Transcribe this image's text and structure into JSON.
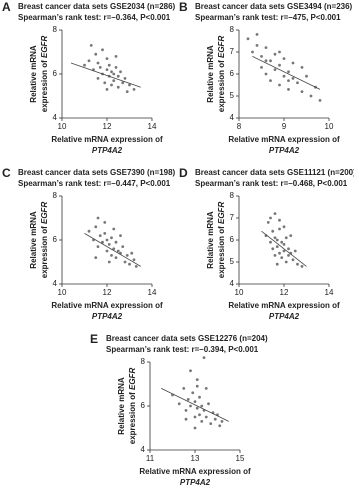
{
  "chart_data": [
    {
      "type": "scatter",
      "label": "A",
      "title": "Breast cancer data sets GSE2034 (n=286)",
      "subtitle": "Spearman’s rank test: r=–0.364, P<0.001",
      "ylabel": [
        "Relative mRNA",
        "expression of ",
        "EGFR"
      ],
      "xlabel": [
        "Relative mRNA expression of",
        "PTP4A2"
      ],
      "xlim": [
        10,
        14
      ],
      "xticks": [
        10,
        12,
        14
      ],
      "ylim": [
        4,
        8
      ],
      "yticks": [
        4,
        6,
        8
      ],
      "color": "#777777",
      "x": [
        11.2,
        11.4,
        11.5,
        11.6,
        11.7,
        11.8,
        11.8,
        11.9,
        12.0,
        12.0,
        12.1,
        12.1,
        12.2,
        12.2,
        12.3,
        12.3,
        12.4,
        12.5,
        12.5,
        12.6,
        12.7,
        12.8,
        12.9,
        13.0,
        13.2,
        11.0,
        11.3,
        11.6,
        12.0,
        12.4
      ],
      "y": [
        6.6,
        6.2,
        6.9,
        5.8,
        6.3,
        6.0,
        7.1,
        5.6,
        6.2,
        6.7,
        5.9,
        6.4,
        5.5,
        6.1,
        6.0,
        5.7,
        6.3,
        5.4,
        5.9,
        6.1,
        5.6,
        5.8,
        5.2,
        5.5,
        5.3,
        6.4,
        7.3,
        6.5,
        5.3,
        6.8
      ],
      "trend": {
        "x": [
          10.4,
          13.5
        ],
        "y": [
          6.5,
          5.4
        ]
      }
    },
    {
      "type": "scatter",
      "label": "B",
      "title": "Breast cancer data sets GSE3494 (n=236)",
      "subtitle": "Spearman’s rank test: r=–475, P<0.001",
      "ylabel": [
        "Relative mRNA",
        "expression of ",
        "EGFR"
      ],
      "xlabel": [
        "Relative mRNA expression of",
        "PTP4A2"
      ],
      "xlim": [
        8,
        10
      ],
      "xticks": [
        8,
        9,
        10
      ],
      "ylim": [
        4,
        8
      ],
      "yticks": [
        4,
        5,
        6,
        7,
        8
      ],
      "color": "#777777",
      "x": [
        8.2,
        8.3,
        8.4,
        8.5,
        8.5,
        8.6,
        8.6,
        8.7,
        8.7,
        8.8,
        8.8,
        8.9,
        8.9,
        9.0,
        9.0,
        9.1,
        9.1,
        9.2,
        9.2,
        9.3,
        9.4,
        9.5,
        9.6,
        9.7,
        9.8,
        8.4,
        8.6,
        8.9,
        9.1,
        9.4
      ],
      "y": [
        7.6,
        7.0,
        7.3,
        6.8,
        6.3,
        7.2,
        6.0,
        6.6,
        5.7,
        6.9,
        6.2,
        6.4,
        5.5,
        6.7,
        5.9,
        6.1,
        5.3,
        5.8,
        6.5,
        5.6,
        5.2,
        5.9,
        5.0,
        5.4,
        4.8,
        7.8,
        6.6,
        7.0,
        5.7,
        6.3
      ],
      "trend": {
        "x": [
          8.3,
          9.8
        ],
        "y": [
          6.8,
          5.3
        ]
      }
    },
    {
      "type": "scatter",
      "label": "C",
      "title": "Breast cancer data sets GSE7390 (n=198)",
      "subtitle": "Spearman’s rank test: r=–0.447, P<0.001",
      "ylabel": [
        "Relative mRNA",
        "expression of ",
        "EGFR"
      ],
      "xlabel": [
        "Relative mRNA expression of",
        "PTP4A2"
      ],
      "xlim": [
        10,
        14
      ],
      "xticks": [
        10,
        12,
        14
      ],
      "ylim": [
        4,
        8
      ],
      "yticks": [
        4,
        6,
        8
      ],
      "color": "#777777",
      "x": [
        11.2,
        11.4,
        11.5,
        11.6,
        11.7,
        11.8,
        11.9,
        12.0,
        12.0,
        12.1,
        12.2,
        12.2,
        12.3,
        12.4,
        12.4,
        12.5,
        12.6,
        12.7,
        12.8,
        12.9,
        13.0,
        13.1,
        13.2,
        13.3,
        11.6,
        11.9,
        12.3,
        12.6,
        12.1,
        11.5
      ],
      "y": [
        6.4,
        6.0,
        6.6,
        5.7,
        6.2,
        5.9,
        6.3,
        5.5,
        6.0,
        5.8,
        5.3,
        6.1,
        5.6,
        5.9,
        5.2,
        5.5,
        5.4,
        5.7,
        5.0,
        5.3,
        4.9,
        5.4,
        5.1,
        4.8,
        7.0,
        6.8,
        6.5,
        6.2,
        5.0,
        5.2
      ],
      "trend": {
        "x": [
          11.0,
          13.5
        ],
        "y": [
          6.3,
          4.8
        ]
      }
    },
    {
      "type": "scatter",
      "label": "D",
      "title": "Breast cancer data sets GSE11121 (n=200)",
      "subtitle": "Spearman’s rank test: r=–0.468, P<0.001",
      "ylabel": [
        "Relative mRNA",
        "expression of ",
        "EGFR"
      ],
      "xlabel": [
        "Relative mRNA expression of",
        "PTP4A2"
      ],
      "xlim": [
        10,
        14
      ],
      "xticks": [
        10,
        12,
        14
      ],
      "ylim": [
        4,
        8
      ],
      "yticks": [
        4,
        5,
        6,
        7,
        8
      ],
      "color": "#777777",
      "x": [
        11.2,
        11.3,
        11.4,
        11.5,
        11.5,
        11.6,
        11.6,
        11.7,
        11.7,
        11.8,
        11.8,
        11.9,
        11.9,
        12.0,
        12.0,
        12.1,
        12.1,
        12.2,
        12.2,
        12.3,
        12.4,
        12.5,
        12.6,
        12.8,
        11.4,
        11.6,
        11.8,
        12.0,
        12.3,
        11.7
      ],
      "y": [
        6.2,
        6.8,
        5.9,
        6.4,
        5.6,
        6.1,
        5.3,
        6.0,
        5.7,
        6.5,
        5.4,
        5.9,
        5.2,
        5.8,
        5.5,
        6.1,
        5.0,
        5.6,
        5.3,
        5.4,
        5.1,
        5.5,
        4.9,
        4.8,
        7.0,
        7.2,
        6.9,
        6.6,
        6.2,
        4.9
      ],
      "trend": {
        "x": [
          11.0,
          13.0
        ],
        "y": [
          6.4,
          4.8
        ]
      }
    },
    {
      "type": "scatter",
      "label": "E",
      "title": "Breast cancer data sets GSE12276 (n=204)",
      "subtitle": "Spearman’s rank test: r=–0.394, P<0.001",
      "ylabel": [
        "Relative mRNA",
        "expression of ",
        "EGFR"
      ],
      "xlabel": [
        "Relative mRNA expression of",
        "PTP4A2"
      ],
      "xlim": [
        11,
        15
      ],
      "xticks": [
        11,
        13,
        15
      ],
      "ylim": [
        4,
        8
      ],
      "yticks": [
        4,
        6,
        8
      ],
      "color": "#777777",
      "x": [
        12.0,
        12.3,
        12.5,
        12.6,
        12.7,
        12.8,
        12.9,
        13.0,
        13.0,
        13.1,
        13.1,
        13.2,
        13.2,
        13.3,
        13.3,
        13.4,
        13.5,
        13.6,
        13.7,
        13.8,
        13.9,
        14.0,
        14.1,
        14.2,
        12.8,
        13.1,
        13.5,
        13.0,
        12.6,
        13.4
      ],
      "y": [
        6.5,
        6.1,
        6.8,
        5.8,
        6.3,
        6.0,
        6.6,
        5.5,
        6.2,
        5.9,
        6.9,
        5.6,
        6.4,
        5.3,
        6.0,
        5.8,
        5.5,
        6.1,
        5.2,
        5.7,
        5.4,
        5.6,
        5.1,
        5.3,
        7.6,
        7.2,
        6.8,
        5.0,
        5.4,
        8.2
      ],
      "trend": {
        "x": [
          11.5,
          14.5
        ],
        "y": [
          6.8,
          5.3
        ]
      }
    }
  ]
}
